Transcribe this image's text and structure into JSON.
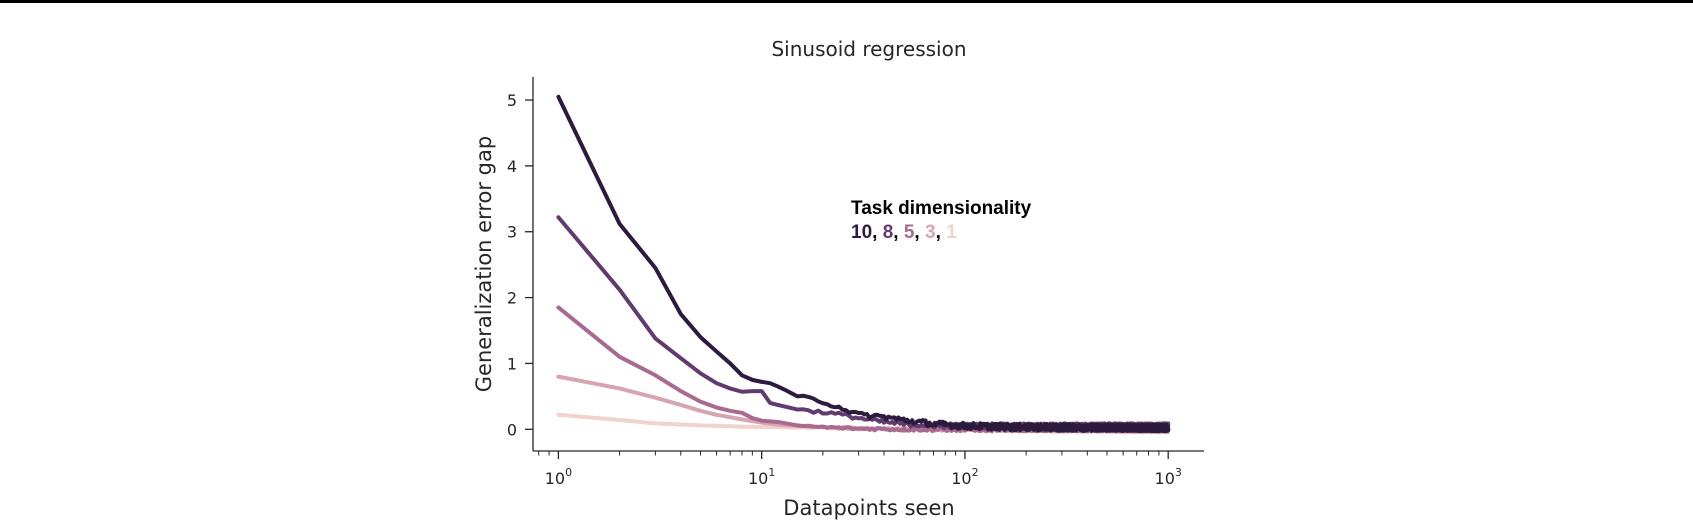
{
  "chart_data": {
    "type": "line",
    "title": "Sinusoid regression",
    "xlabel": "Datapoints seen",
    "ylabel": "Generalization error gap",
    "xscale": "log",
    "xlim": [
      0.75,
      1500
    ],
    "ylim": [
      -0.33,
      5.35
    ],
    "x_ticks": [
      1,
      10,
      100,
      1000
    ],
    "x_tick_labels": [
      {
        "base": "10",
        "exp": "0"
      },
      {
        "base": "10",
        "exp": "1"
      },
      {
        "base": "10",
        "exp": "2"
      },
      {
        "base": "10",
        "exp": "3"
      }
    ],
    "y_ticks": [
      0,
      1,
      2,
      3,
      4,
      5
    ],
    "y_tick_labels": [
      "0",
      "1",
      "2",
      "3",
      "4",
      "5"
    ],
    "grid": false,
    "legend": {
      "title": "Task dimensionality",
      "placement": "upper-center",
      "items": [
        {
          "label": "10",
          "color": "#2c1b3e"
        },
        {
          "label": "8",
          "color": "#623b6e"
        },
        {
          "label": "5",
          "color": "#a86a8f"
        },
        {
          "label": "3",
          "color": "#d7a5b1"
        },
        {
          "label": "1",
          "color": "#f0d3cc"
        }
      ],
      "separator": ", "
    },
    "series": [
      {
        "name": "1",
        "color": "#f0d3cc",
        "noise": 0.02,
        "x": [
          1,
          2,
          3,
          5,
          8,
          12,
          20,
          40,
          100,
          1000
        ],
        "y": [
          0.22,
          0.14,
          0.09,
          0.06,
          0.04,
          0.03,
          0.02,
          0.01,
          0.01,
          0.0
        ]
      },
      {
        "name": "3",
        "color": "#d7a5b1",
        "noise": 0.025,
        "x": [
          1,
          2,
          3,
          4,
          5,
          6,
          8,
          10,
          12,
          15,
          20,
          30,
          50,
          100,
          1000
        ],
        "y": [
          0.8,
          0.62,
          0.48,
          0.37,
          0.28,
          0.22,
          0.15,
          0.1,
          0.07,
          0.05,
          0.03,
          0.01,
          0.0,
          0.0,
          -0.02
        ]
      },
      {
        "name": "5",
        "color": "#a86a8f",
        "noise": 0.03,
        "x": [
          1,
          2,
          3,
          4,
          5,
          6,
          7,
          8,
          9,
          10,
          12,
          15,
          20,
          30,
          50,
          100,
          1000
        ],
        "y": [
          1.85,
          1.1,
          0.82,
          0.58,
          0.42,
          0.33,
          0.28,
          0.25,
          0.17,
          0.13,
          0.11,
          0.06,
          0.03,
          0.01,
          0.0,
          0.0,
          0.0
        ]
      },
      {
        "name": "8",
        "color": "#623b6e",
        "noise": 0.04,
        "x": [
          1,
          2,
          3,
          4,
          5,
          6,
          7,
          8,
          9,
          10,
          11,
          12,
          15,
          20,
          25,
          30,
          40,
          50,
          70,
          100,
          1000
        ],
        "y": [
          3.22,
          2.12,
          1.38,
          1.08,
          0.85,
          0.7,
          0.62,
          0.57,
          0.58,
          0.58,
          0.4,
          0.37,
          0.3,
          0.26,
          0.22,
          0.17,
          0.11,
          0.08,
          0.06,
          0.05,
          0.05
        ]
      },
      {
        "name": "10",
        "color": "#2c1b3e",
        "noise": 0.05,
        "x": [
          1,
          2,
          3,
          4,
          5,
          6,
          7,
          8,
          9,
          10,
          11,
          12,
          13,
          15,
          17,
          20,
          25,
          30,
          40,
          50,
          70,
          100,
          200,
          1000
        ],
        "y": [
          5.05,
          3.12,
          2.45,
          1.75,
          1.4,
          1.18,
          1.0,
          0.82,
          0.75,
          0.72,
          0.7,
          0.65,
          0.6,
          0.5,
          0.47,
          0.42,
          0.32,
          0.22,
          0.19,
          0.14,
          0.08,
          0.05,
          0.03,
          0.02
        ]
      }
    ]
  }
}
